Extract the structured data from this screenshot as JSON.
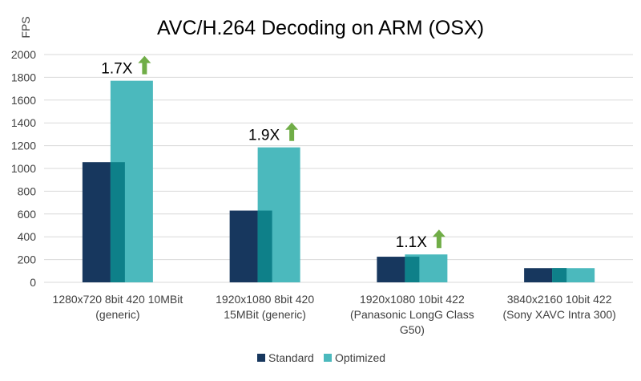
{
  "chart_data": {
    "type": "bar",
    "title": "AVC/H.264 Decoding on ARM (OSX)",
    "ylabel": "FPS",
    "xlabel": "",
    "ylim": [
      0,
      2000
    ],
    "yticks": [
      0,
      200,
      400,
      600,
      800,
      1000,
      1200,
      1400,
      1600,
      1800,
      2000
    ],
    "grid": true,
    "legend_position": "bottom",
    "categories": [
      [
        "1280x720 8bit 420 10MBit",
        "(generic)"
      ],
      [
        "1920x1080 8bit 420",
        "15MBit (generic)"
      ],
      [
        "1920x1080 10bit 422",
        "(Panasonic LongG Class",
        "G50)"
      ],
      [
        "3840x2160 10bit 422",
        "(Sony XAVC Intra 300)"
      ]
    ],
    "series": [
      {
        "name": "Standard",
        "color": "#17375e",
        "values": [
          1055,
          630,
          225,
          125
        ]
      },
      {
        "name": "Optimized",
        "color": "#4bb9bd",
        "values": [
          1770,
          1185,
          245,
          125
        ]
      }
    ],
    "overlap_color": "#0e8089",
    "annotations": [
      {
        "category_index": 0,
        "text": "1.7X",
        "icon": "up-arrow-icon"
      },
      {
        "category_index": 1,
        "text": "1.9X",
        "icon": "up-arrow-icon"
      },
      {
        "category_index": 2,
        "text": "1.1X",
        "icon": "up-arrow-icon"
      }
    ],
    "arrow_color": "#70ad47",
    "gridline_color": "#d9d9d9",
    "text_color": "#404040"
  }
}
